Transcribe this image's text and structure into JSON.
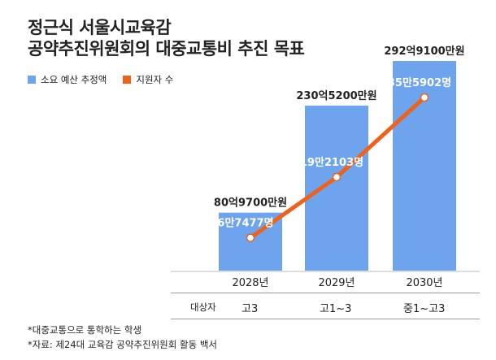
{
  "title_lines": [
    "정근식 서울시교육감",
    "공약추진위원회의 대중교통비 추진 목표"
  ],
  "legend": {
    "budget": "소요 예산 추정액",
    "students": "지원자 수"
  },
  "colors": {
    "bar": "#6ea4ee",
    "line": "#f0611a"
  },
  "chart_data": {
    "type": "bar",
    "categories": [
      "2028년",
      "2029년",
      "2030년"
    ],
    "series": [
      {
        "name": "소요 예산 추정액",
        "type": "bar",
        "values": [
          8097000000,
          23052000000,
          29291000000
        ],
        "labels": [
          "80억9700만원",
          "230억5200만원",
          "292억9100만원"
        ]
      },
      {
        "name": "지원자 수",
        "type": "line",
        "values": [
          67477,
          192103,
          355902
        ],
        "labels": [
          "6만7477명",
          "19만2103명",
          "35만5902명"
        ]
      }
    ]
  },
  "target_row": {
    "label": "대상자",
    "values": [
      "고3",
      "고1~3",
      "중1~고3"
    ]
  },
  "notes": [
    "*대중교통으로 통학하는 학생",
    "*자료: 제24대 교육감 공약추진위원회 활동 백서"
  ]
}
